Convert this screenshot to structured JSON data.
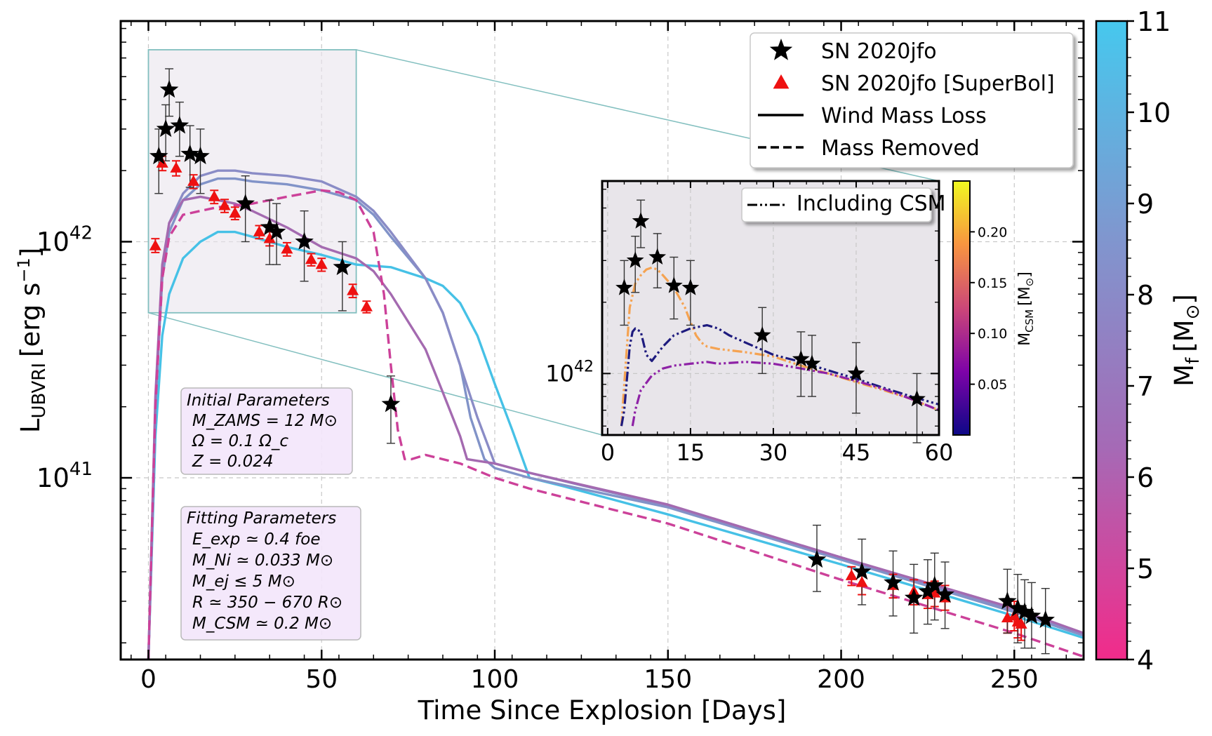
{
  "chart_data": [
    {
      "type": "line",
      "xlabel": "Time Since Explosion [Days]",
      "ylabel": "L",
      "ylabel_subscript": "UBVRI",
      "ylabel_unit": "[erg s",
      "ylabel_unit_exp": "−1",
      "ylabel_unit_close": "]",
      "xlim": [
        -8,
        270
      ],
      "ylim": [
        1.7e+40,
        8.6e+42
      ],
      "yscale": "log",
      "xticks": [
        0,
        50,
        100,
        150,
        200,
        250
      ],
      "yticks": [
        {
          "value": 1e+41,
          "base": "10",
          "exp": "41"
        },
        {
          "value": 1e+42,
          "base": "10",
          "exp": "42"
        }
      ],
      "grid": true,
      "legend": {
        "location": "top-right",
        "entries": [
          {
            "label": "SN 2020jfo",
            "marker": "star",
            "color": "#000000"
          },
          {
            "label": "SN 2020jfo [SuperBol]",
            "marker": "triangle",
            "color": "#ee1111"
          },
          {
            "label": "Wind Mass Loss",
            "line": "solid",
            "color": "#000000"
          },
          {
            "label": "Mass Removed",
            "line": "dashed",
            "color": "#000000"
          }
        ]
      },
      "colorbar": {
        "label": "M",
        "label_subscript": "f",
        "label_unit": "[M",
        "label_unit_symbol": "⊙",
        "label_unit_close": "]",
        "range": [
          4,
          11
        ],
        "ticks": [
          "4",
          "5",
          "6",
          "7",
          "8",
          "9",
          "10",
          "11"
        ],
        "colors": [
          "#f22b8a",
          "#a56ab6",
          "#7f97cf",
          "#46c8ee"
        ]
      },
      "series": [
        {
          "line": "solid",
          "color": "#46c1e6",
          "mass": 11,
          "x": [
            0,
            2,
            4,
            6,
            10,
            15,
            20,
            25,
            30,
            40,
            50,
            60,
            70,
            80,
            85,
            90,
            95,
            100,
            105,
            110,
            120,
            150,
            200,
            250,
            270
          ],
          "y": [
            1.7e+40,
            1.5e+41,
            4e+41,
            6e+41,
            8.5e+41,
            1e+42,
            1.1e+42,
            1.1e+42,
            1.05e+42,
            9.5e+41,
            8.8e+41,
            8e+41,
            7.8e+41,
            7e+41,
            6.5e+41,
            5.5e+41,
            4e+41,
            2.5e+41,
            1.6e+41,
            1e+41,
            9.2e+40,
            7e+40,
            4.3e+40,
            2.6e+40,
            2.1e+40
          ]
        },
        {
          "line": "solid",
          "color": "#8193c8",
          "mass": 9,
          "x": [
            0,
            2,
            4,
            6,
            10,
            15,
            20,
            25,
            30,
            40,
            50,
            60,
            65,
            70,
            80,
            85,
            90,
            93,
            97,
            100,
            110,
            150,
            200,
            250,
            270
          ],
          "y": [
            1.7e+40,
            2e+41,
            7e+41,
            1.1e+42,
            1.5e+42,
            1.75e+42,
            1.85e+42,
            1.85e+42,
            1.8e+42,
            1.75e+42,
            1.65e+42,
            1.5e+42,
            1.3e+42,
            1.05e+42,
            7e+41,
            5e+41,
            3e+41,
            1.8e+41,
            1.2e+41,
            1.1e+41,
            1e+41,
            7.5e+40,
            4.5e+40,
            2.7e+40,
            2.15e+40
          ]
        },
        {
          "line": "solid",
          "color": "#8a8cc6",
          "mass": 8.5,
          "x": [
            0,
            2,
            4,
            6,
            10,
            15,
            20,
            25,
            30,
            40,
            50,
            60,
            65,
            70,
            80,
            85,
            90,
            95,
            100,
            110,
            150,
            200,
            250,
            270
          ],
          "y": [
            1.7e+40,
            2e+41,
            7.5e+41,
            1.2e+42,
            1.6e+42,
            1.9e+42,
            2e+42,
            2e+42,
            1.95e+42,
            1.9e+42,
            1.8e+42,
            1.55e+42,
            1.35e+42,
            1.1e+42,
            7e+41,
            5e+41,
            3e+41,
            1.8e+41,
            1.15e+41,
            1.05e+41,
            7.6e+40,
            4.6e+40,
            2.75e+40,
            2.15e+40
          ]
        },
        {
          "line": "solid",
          "color": "#a46ab0",
          "mass": 6.5,
          "x": [
            0,
            2,
            4,
            6,
            10,
            15,
            20,
            25,
            30,
            40,
            50,
            60,
            65,
            70,
            80,
            85,
            90,
            92,
            95,
            100,
            110,
            150,
            200,
            250,
            270
          ],
          "y": [
            1.7e+40,
            2.2e+41,
            8e+41,
            1.2e+42,
            1.5e+42,
            1.55e+42,
            1.5e+42,
            1.45e+42,
            1.35e+42,
            1.15e+42,
            9.5e+41,
            8.5e+41,
            7.5e+41,
            6e+41,
            3.5e+41,
            2.3e+41,
            1.5e+41,
            1.2e+41,
            1.18e+41,
            1.15e+41,
            1.05e+41,
            7.7e+40,
            4.6e+40,
            2.8e+40,
            2.2e+40
          ]
        },
        {
          "line": "dashed",
          "color": "#cc4199",
          "mass": 5.5,
          "x": [
            0,
            2,
            4,
            6,
            10,
            15,
            20,
            30,
            40,
            50,
            55,
            60,
            65,
            68,
            70,
            72,
            74,
            76,
            80,
            90,
            100,
            110,
            150,
            200,
            250,
            270
          ],
          "y": [
            1.7e+40,
            2e+41,
            7e+41,
            1.05e+42,
            1.3e+42,
            1.35e+42,
            1.4e+42,
            1.45e+42,
            1.55e+42,
            1.65e+42,
            1.62e+42,
            1.5e+42,
            1.1e+42,
            6e+41,
            3e+41,
            1.6e+41,
            1.2e+41,
            1.2e+41,
            1.25e+41,
            1.15e+41,
            1e+41,
            9e+40,
            6.4e+40,
            3.7e+40,
            2.2e+40,
            1.75e+40
          ]
        }
      ],
      "observations_star": {
        "label": "SN 2020jfo",
        "points": [
          {
            "x": 3,
            "y": 2.3e+42,
            "lo": 1.6e+42,
            "hi": 3e+42
          },
          {
            "x": 5,
            "y": 3e+42,
            "lo": 2.2e+42,
            "hi": 3.8e+42
          },
          {
            "x": 6,
            "y": 4.4e+42,
            "lo": 3.4e+42,
            "hi": 5.4e+42
          },
          {
            "x": 9,
            "y": 3.1e+42,
            "lo": 2.3e+42,
            "hi": 3.9e+42
          },
          {
            "x": 12,
            "y": 2.35e+42,
            "lo": 1.7e+42,
            "hi": 3.1e+42
          },
          {
            "x": 15,
            "y": 2.3e+42,
            "lo": 1.6e+42,
            "hi": 3e+42
          },
          {
            "x": 28,
            "y": 1.45e+42,
            "lo": 1e+42,
            "hi": 1.9e+42
          },
          {
            "x": 35,
            "y": 1.15e+42,
            "lo": 8e+41,
            "hi": 1.5e+42
          },
          {
            "x": 37,
            "y": 1.1e+42,
            "lo": 8e+41,
            "hi": 1.45e+42
          },
          {
            "x": 45,
            "y": 1e+42,
            "lo": 6.8e+41,
            "hi": 1.35e+42
          },
          {
            "x": 56,
            "y": 7.8e+41,
            "lo": 5.1e+41,
            "hi": 1e+42
          },
          {
            "x": 70,
            "y": 2.05e+41,
            "lo": 1.4e+41,
            "hi": 2.7e+41
          },
          {
            "x": 193,
            "y": 4.5e+40,
            "lo": 3.3e+40,
            "hi": 6.3e+40
          },
          {
            "x": 206,
            "y": 4e+40,
            "lo": 2.9e+40,
            "hi": 5.5e+40
          },
          {
            "x": 215,
            "y": 3.6e+40,
            "lo": 2.6e+40,
            "hi": 4.9e+40
          },
          {
            "x": 221,
            "y": 3.1e+40,
            "lo": 2.2e+40,
            "hi": 4.3e+40
          },
          {
            "x": 225,
            "y": 3.3e+40,
            "lo": 2.4e+40,
            "hi": 4.5e+40
          },
          {
            "x": 227,
            "y": 3.5e+40,
            "lo": 2.5e+40,
            "hi": 4.8e+40
          },
          {
            "x": 230,
            "y": 3.2e+40,
            "lo": 2.3e+40,
            "hi": 4.4e+40
          },
          {
            "x": 248,
            "y": 3e+40,
            "lo": 2.2e+40,
            "hi": 4.1e+40
          },
          {
            "x": 251,
            "y": 2.8e+40,
            "lo": 2e+40,
            "hi": 3.9e+40
          },
          {
            "x": 253,
            "y": 2.7e+40,
            "lo": 1.9e+40,
            "hi": 3.7e+40
          },
          {
            "x": 255,
            "y": 2.6e+40,
            "lo": 1.9e+40,
            "hi": 3.6e+40
          },
          {
            "x": 259,
            "y": 2.5e+40,
            "lo": 1.8e+40,
            "hi": 3.4e+40
          }
        ]
      },
      "observations_triangle": {
        "label": "SN 2020jfo [SuperBol]",
        "points": [
          {
            "x": 2,
            "y": 9.6e+41,
            "lo": 9e+41,
            "hi": 1.03e+42
          },
          {
            "x": 4,
            "y": 2.15e+42,
            "lo": 2e+42,
            "hi": 2.3e+42
          },
          {
            "x": 8,
            "y": 2.05e+42,
            "lo": 1.9e+42,
            "hi": 2.2e+42
          },
          {
            "x": 13,
            "y": 1.8e+42,
            "lo": 1.68e+42,
            "hi": 1.92e+42
          },
          {
            "x": 19,
            "y": 1.55e+42,
            "lo": 1.45e+42,
            "hi": 1.65e+42
          },
          {
            "x": 22,
            "y": 1.42e+42,
            "lo": 1.33e+42,
            "hi": 1.51e+42
          },
          {
            "x": 25,
            "y": 1.32e+42,
            "lo": 1.24e+42,
            "hi": 1.4e+42
          },
          {
            "x": 32,
            "y": 1.1e+42,
            "lo": 1.03e+42,
            "hi": 1.17e+42
          },
          {
            "x": 35,
            "y": 1.03e+42,
            "lo": 9.6e+41,
            "hi": 1.1e+42
          },
          {
            "x": 40,
            "y": 9.3e+41,
            "lo": 8.7e+41,
            "hi": 9.9e+41
          },
          {
            "x": 47,
            "y": 8.4e+41,
            "lo": 7.9e+41,
            "hi": 8.9e+41
          },
          {
            "x": 50,
            "y": 8e+41,
            "lo": 7.5e+41,
            "hi": 8.5e+41
          },
          {
            "x": 59,
            "y": 6.2e+41,
            "lo": 5.8e+41,
            "hi": 6.6e+41
          },
          {
            "x": 63,
            "y": 5.3e+41,
            "lo": 5e+41,
            "hi": 5.6e+41
          },
          {
            "x": 203,
            "y": 3.85e+40,
            "lo": 3.5e+40,
            "hi": 4.2e+40
          },
          {
            "x": 206,
            "y": 3.6e+40,
            "lo": 3.2e+40,
            "hi": 4e+40
          },
          {
            "x": 215,
            "y": 3.5e+40,
            "lo": 3.1e+40,
            "hi": 3.9e+40
          },
          {
            "x": 221,
            "y": 3.3e+40,
            "lo": 2.9e+40,
            "hi": 3.7e+40
          },
          {
            "x": 225,
            "y": 3.2e+40,
            "lo": 2.8e+40,
            "hi": 3.6e+40
          },
          {
            "x": 227,
            "y": 3.25e+40,
            "lo": 2.85e+40,
            "hi": 3.65e+40
          },
          {
            "x": 230,
            "y": 3.1e+40,
            "lo": 2.75e+40,
            "hi": 3.5e+40
          },
          {
            "x": 248,
            "y": 2.55e+40,
            "lo": 2.2e+40,
            "hi": 2.95e+40
          },
          {
            "x": 250,
            "y": 2.6e+40,
            "lo": 2.25e+40,
            "hi": 3e+40
          },
          {
            "x": 251,
            "y": 2.45e+40,
            "lo": 2.1e+40,
            "hi": 2.85e+40
          },
          {
            "x": 252,
            "y": 2.4e+40,
            "lo": 2.05e+40,
            "hi": 2.8e+40
          }
        ]
      },
      "zoom_region": {
        "x": [
          0,
          60
        ],
        "y": [
          5e+41,
          6.5e+42
        ]
      },
      "annotations": {
        "initial_title": "Initial Parameters",
        "initial_lines": [
          "M_ZAMS = 12 M⊙",
          "Ω = 0.1 Ω_c",
          "Z = 0.024"
        ],
        "fitting_title": "Fitting Parameters",
        "fitting_lines": [
          "E_exp ≃ 0.4 foe",
          "M_Ni ≃ 0.033 M⊙",
          "M_ej ≤ 5 M⊙",
          "R ≃ 350 − 670 R⊙",
          "M_CSM ≃ 0.2 M⊙"
        ]
      }
    },
    {
      "type": "line",
      "inset": true,
      "xlim": [
        -1,
        60
      ],
      "ylim": [
        5.5e+41,
        6.5e+42
      ],
      "yscale": "log",
      "xticks": [
        0,
        15,
        30,
        45,
        60
      ],
      "yticks": [
        {
          "value": 1e+42,
          "base": "10",
          "exp": "42"
        }
      ],
      "legend": {
        "location": "top-right",
        "entries": [
          {
            "label": "Including CSM",
            "line": "dash-dot",
            "color": "#000000"
          }
        ]
      },
      "colorbar": {
        "label": "M",
        "label_subscript": "CSM",
        "label_unit": "[M",
        "label_unit_symbol": "⊙",
        "label_unit_close": "]",
        "ticks": [
          "0.05",
          "0.10",
          "0.15",
          "0.20"
        ],
        "range": [
          0.0,
          0.25
        ],
        "colors": [
          "#0d0887",
          "#7e03a8",
          "#cc4778",
          "#f89540",
          "#f0f921"
        ]
      },
      "series": [
        {
          "line": "dash-dot",
          "color": "#f5a352",
          "m_csm": 0.2,
          "x": [
            2.5,
            3,
            4,
            5,
            6,
            7,
            8,
            9,
            10,
            12,
            14,
            15,
            16,
            17,
            18,
            20,
            25,
            30,
            35,
            40,
            45,
            50,
            55,
            60
          ],
          "y": [
            6e+41,
            9e+41,
            1.9e+42,
            2.4e+42,
            2.6e+42,
            2.75e+42,
            2.8e+42,
            2.75e+42,
            2.6e+42,
            2.3e+42,
            1.9e+42,
            1.65e+42,
            1.45e+42,
            1.35e+42,
            1.3e+42,
            1.27e+42,
            1.23e+42,
            1.18e+42,
            1.08e+42,
            1e+42,
            9.2e+41,
            8.5e+41,
            7.8e+41,
            7e+41
          ]
        },
        {
          "line": "dash-dot",
          "color": "#1e1b7e",
          "m_csm": 0.01,
          "x": [
            2.5,
            3,
            4,
            4.5,
            5,
            6,
            7,
            8,
            10,
            12,
            15,
            18,
            20,
            22,
            25,
            30,
            35,
            40,
            45,
            50,
            55,
            60
          ],
          "y": [
            6e+41,
            7e+41,
            1.3e+42,
            1.5e+42,
            1.55e+42,
            1.5e+42,
            1.2e+42,
            1.13e+42,
            1.3e+42,
            1.45e+42,
            1.55e+42,
            1.6e+42,
            1.55e+42,
            1.45e+42,
            1.35e+42,
            1.2e+42,
            1.12e+42,
            1.03e+42,
            9.5e+41,
            8.7e+41,
            8e+41,
            7.4e+41
          ]
        },
        {
          "line": "dash-dot",
          "color": "#8e22a6",
          "m_csm": 0.08,
          "x": [
            4.5,
            5,
            6,
            8,
            10,
            12,
            15,
            18,
            20,
            25,
            30,
            35,
            40,
            45,
            50,
            55,
            60
          ],
          "y": [
            6e+41,
            7e+41,
            8.5e+41,
            9.8e+41,
            1.05e+42,
            1.08e+42,
            1.1e+42,
            1.12e+42,
            1.1e+42,
            1.12e+42,
            1.1e+42,
            1.05e+42,
            1e+42,
            9.3e+41,
            8.6e+41,
            7.8e+41,
            7e+41
          ]
        }
      ],
      "observations_star": [
        {
          "x": 3,
          "y": 2.3e+42,
          "lo": 1.6e+42,
          "hi": 3e+42
        },
        {
          "x": 5,
          "y": 3e+42,
          "lo": 2.2e+42,
          "hi": 3.8e+42
        },
        {
          "x": 6,
          "y": 4.4e+42,
          "lo": 3.4e+42,
          "hi": 5.4e+42
        },
        {
          "x": 9,
          "y": 3.1e+42,
          "lo": 2.3e+42,
          "hi": 3.9e+42
        },
        {
          "x": 12,
          "y": 2.35e+42,
          "lo": 1.7e+42,
          "hi": 3.1e+42
        },
        {
          "x": 15,
          "y": 2.3e+42,
          "lo": 1.6e+42,
          "hi": 3e+42
        },
        {
          "x": 28,
          "y": 1.45e+42,
          "lo": 1e+42,
          "hi": 1.9e+42
        },
        {
          "x": 35,
          "y": 1.15e+42,
          "lo": 8e+41,
          "hi": 1.5e+42
        },
        {
          "x": 37,
          "y": 1.1e+42,
          "lo": 8e+41,
          "hi": 1.45e+42
        },
        {
          "x": 45,
          "y": 1e+42,
          "lo": 6.8e+41,
          "hi": 1.35e+42
        },
        {
          "x": 56,
          "y": 7.8e+41,
          "lo": 5.1e+41,
          "hi": 1e+42
        }
      ]
    }
  ]
}
